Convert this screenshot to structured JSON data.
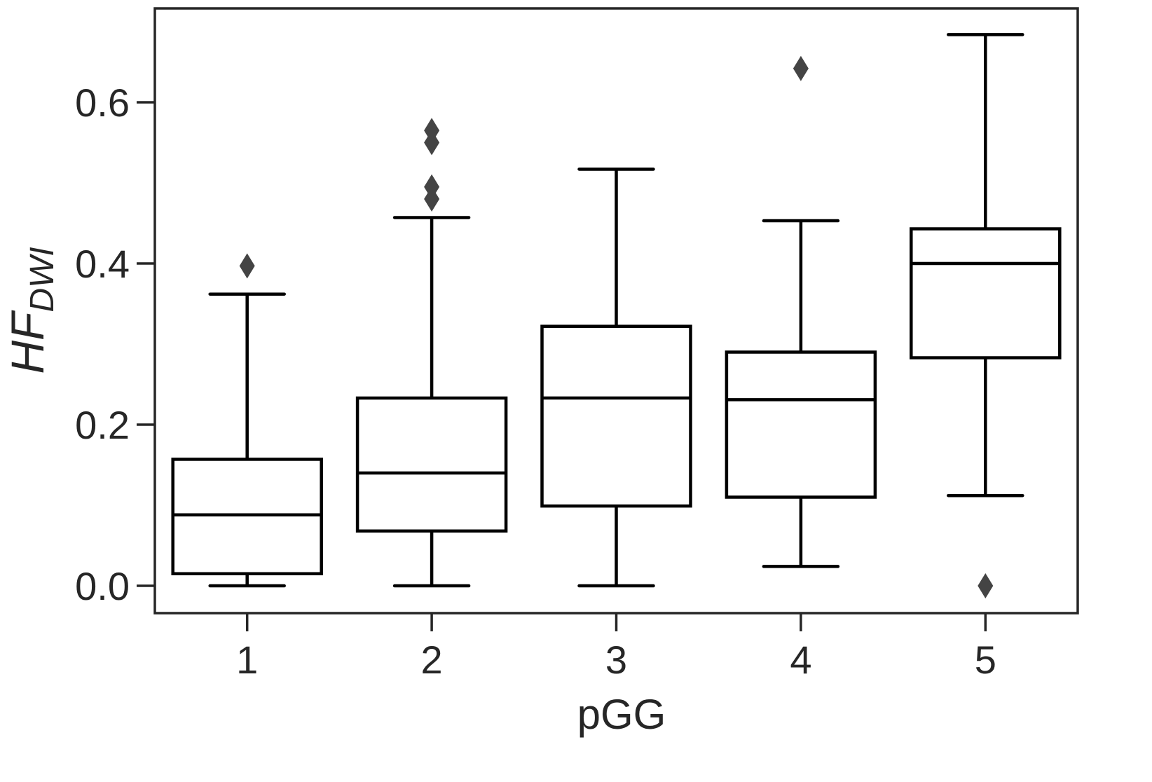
{
  "chart_data": {
    "type": "box",
    "title": "",
    "xlabel": "pGG",
    "ylabel": "HF",
    "ylabel_subscript": "DWI",
    "ylim": [
      -0.035,
      0.715
    ],
    "yticks": [
      0.0,
      0.2,
      0.4,
      0.6
    ],
    "ytick_labels": [
      "0.0",
      "0.2",
      "0.4",
      "0.6"
    ],
    "categories": [
      "1",
      "2",
      "3",
      "4",
      "5"
    ],
    "grid": false,
    "legend": null,
    "boxes": [
      {
        "category": "1",
        "whisker_low": 0.0,
        "q1": 0.015,
        "median": 0.088,
        "q3": 0.157,
        "whisker_high": 0.362,
        "outliers": [
          0.397
        ]
      },
      {
        "category": "2",
        "whisker_low": 0.0,
        "q1": 0.068,
        "median": 0.14,
        "q3": 0.233,
        "whisker_high": 0.457,
        "outliers": [
          0.565,
          0.55,
          0.495,
          0.48
        ]
      },
      {
        "category": "3",
        "whisker_low": 0.0,
        "q1": 0.099,
        "median": 0.233,
        "q3": 0.322,
        "whisker_high": 0.517,
        "outliers": []
      },
      {
        "category": "4",
        "whisker_low": 0.024,
        "q1": 0.11,
        "median": 0.231,
        "q3": 0.29,
        "whisker_high": 0.453,
        "outliers": [
          0.642
        ]
      },
      {
        "category": "5",
        "whisker_low": 0.112,
        "q1": 0.283,
        "median": 0.4,
        "q3": 0.443,
        "whisker_high": 0.684,
        "outliers": [
          0.0
        ]
      }
    ]
  },
  "colors": {
    "box_edge": "#000000",
    "outlier": "#444444",
    "axis": "#262626",
    "background": "#ffffff"
  }
}
